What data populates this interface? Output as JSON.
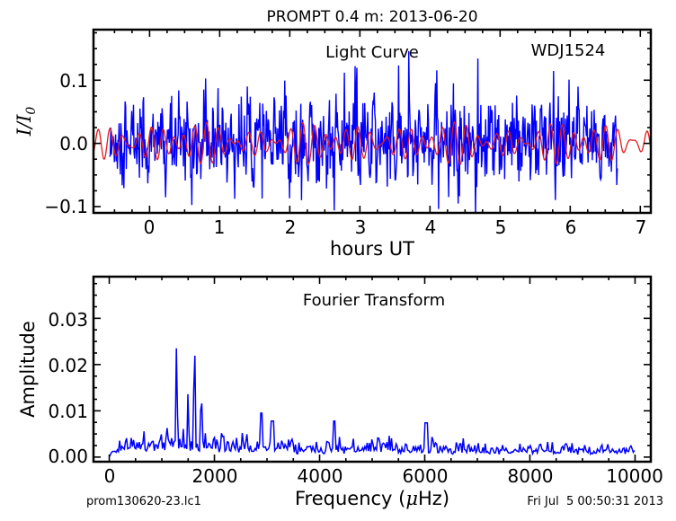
{
  "chart_data": [
    {
      "type": "line",
      "title": "PROMPT 0.4 m:  2013-06-20",
      "annotation": "Light Curve",
      "object_label": "WDJ1524",
      "xlabel": "hours UT",
      "ylabel": "I/I0",
      "ylabel_main": "I/I",
      "ylabel_sub": "0",
      "xlim": [
        -0.8,
        7.15
      ],
      "ylim": [
        -0.11,
        0.18
      ],
      "xticks": [
        "0",
        "1",
        "2",
        "3",
        "4",
        "5",
        "6",
        "7"
      ],
      "yticks": [
        "−0.1",
        "0.0",
        "0.1"
      ],
      "ytick_values": [
        -0.1,
        0.0,
        0.1
      ],
      "grid": false,
      "series": [
        {
          "color": "#0000ff",
          "x_start": -0.57,
          "x_end": 6.68,
          "style": "noisy photometry"
        },
        {
          "color": "#e41a1c",
          "x_start": -0.8,
          "x_end": 7.15,
          "style": "model fit"
        }
      ]
    },
    {
      "type": "line",
      "annotation": "Fourier Transform",
      "xlabel": "Frequency (μHz)",
      "xlabel_pre": "Frequency (",
      "xlabel_mu": "μ",
      "xlabel_post": "Hz)",
      "ylabel": "Amplitude",
      "xlim": [
        -300,
        10300
      ],
      "ylim": [
        -0.001,
        0.039
      ],
      "xticks": [
        "0",
        "2000",
        "4000",
        "6000",
        "8000",
        "10000"
      ],
      "xtick_values": [
        0,
        2000,
        4000,
        6000,
        8000,
        10000
      ],
      "yticks": [
        "0.00",
        "0.01",
        "0.02",
        "0.03"
      ],
      "ytick_values": [
        0.0,
        0.01,
        0.02,
        0.03
      ],
      "grid": false,
      "peaks": [
        {
          "x": 1280,
          "y": 0.0247
        },
        {
          "x": 1500,
          "y": 0.0143
        },
        {
          "x": 1620,
          "y": 0.0267
        },
        {
          "x": 1750,
          "y": 0.0158
        }
      ],
      "series": [
        {
          "color": "#0000ff",
          "x_start": 0,
          "x_end": 10000
        }
      ]
    }
  ],
  "footer": {
    "left": "prom130620-23.lc1",
    "right": "Fri Jul  5 00:50:31 2013"
  },
  "colors": {
    "data": "#0000ff",
    "fit": "#e41a1c",
    "axes": "#000000"
  }
}
